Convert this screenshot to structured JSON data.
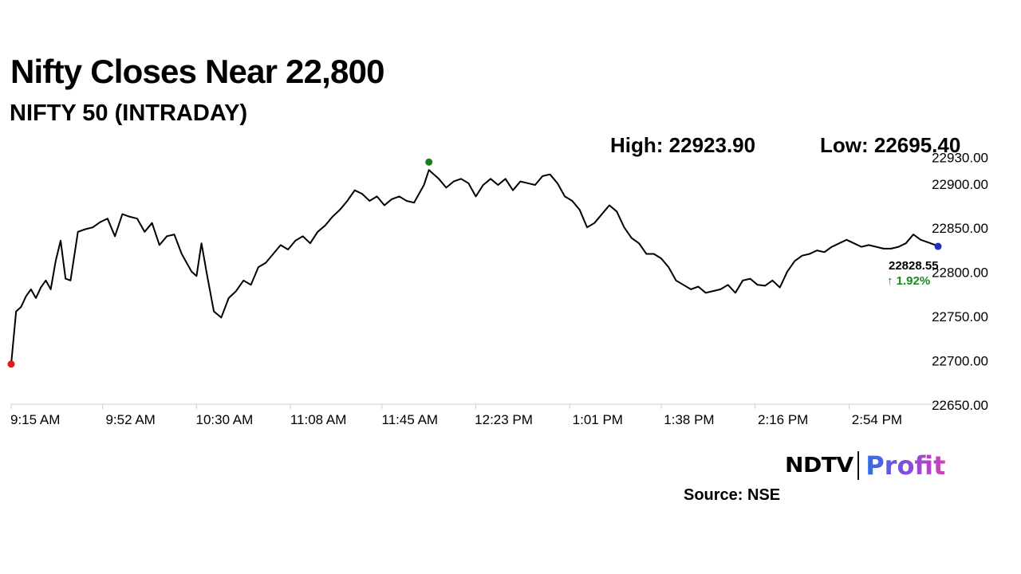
{
  "header": {
    "title": "Nifty Closes Near 22,800",
    "subtitle": "NIFTY 50 (INTRADAY)"
  },
  "stats": {
    "high_text": "High: 22923.90",
    "low_text": "Low: 22695.40"
  },
  "last_price": {
    "value_text": "22828.55",
    "change_text": "↑ 1.92%",
    "change_color": "#1a8a1a"
  },
  "markers": {
    "open_color": "#e01b1b",
    "high_color": "#1a7f1a",
    "last_color": "#1f2fbf"
  },
  "footer": {
    "brand_left": "NDTV",
    "brand_right": "Profit",
    "source": "Source: NSE"
  },
  "chart_data": {
    "type": "line",
    "title": "Nifty Closes Near 22,800",
    "subtitle": "NIFTY 50 (INTRADAY)",
    "x_unit": "time of day",
    "x_tick_labels": [
      "9:15 AM",
      "9:52 AM",
      "10:30 AM",
      "11:08 AM",
      "11:45 AM",
      "12:23 PM",
      "1:01 PM",
      "1:38 PM",
      "2:16 PM",
      "2:54 PM"
    ],
    "x_tick_minutes": [
      555,
      592,
      630,
      668,
      705,
      743,
      781,
      818,
      856,
      894
    ],
    "xlim_minutes": [
      555,
      930
    ],
    "ylim": [
      22650,
      22935
    ],
    "y_ticks": [
      22650,
      22700,
      22750,
      22800,
      22850,
      22900,
      22930
    ],
    "y_tick_labels": [
      "22650.00",
      "22700.00",
      "22750.00",
      "22800.00",
      "22850.00",
      "22900.00",
      "22930.00"
    ],
    "grid": false,
    "line_color": "#000000",
    "series": [
      {
        "x_minutes": [
          555,
          557,
          559,
          561,
          563,
          565,
          567,
          569,
          571,
          573,
          575,
          577,
          579,
          582,
          585,
          588,
          591,
          594,
          597,
          600,
          603,
          606,
          609,
          612,
          615,
          618,
          621,
          624,
          626,
          628,
          630,
          632,
          634,
          637,
          640,
          643,
          646,
          649,
          652,
          655,
          658,
          661,
          664,
          667,
          670,
          673,
          676,
          679,
          682,
          685,
          688,
          691,
          694,
          697,
          700,
          703,
          706,
          709,
          712,
          715,
          718,
          720,
          722,
          724,
          726,
          728,
          731,
          734,
          737,
          740,
          743,
          746,
          749,
          752,
          755,
          758,
          761,
          764,
          767,
          770,
          773,
          776,
          779,
          782,
          785,
          788,
          791,
          794,
          797,
          800,
          803,
          806,
          809,
          812,
          815,
          818,
          821,
          824,
          827,
          830,
          833,
          836,
          839,
          842,
          845,
          848,
          851,
          854,
          857,
          860,
          863,
          866,
          869,
          872,
          875,
          878,
          881,
          884,
          887,
          890,
          893,
          896,
          899,
          902,
          905,
          908,
          911,
          914,
          917,
          920,
          923,
          926,
          929,
          930
        ],
        "values": [
          22695.4,
          22755,
          22760,
          22772,
          22780,
          22770,
          22782,
          22790,
          22780,
          22812,
          22835,
          22792,
          22790,
          22845,
          22848,
          22850,
          22856,
          22860,
          22840,
          22865,
          22862,
          22860,
          22845,
          22855,
          22830,
          22840,
          22842,
          22820,
          22810,
          22800,
          22795,
          22832,
          22800,
          22755,
          22748,
          22770,
          22778,
          22790,
          22785,
          22805,
          22810,
          22820,
          22830,
          22825,
          22835,
          22840,
          22832,
          22845,
          22852,
          22862,
          22870,
          22880,
          22892,
          22888,
          22880,
          22885,
          22875,
          22882,
          22885,
          22880,
          22878,
          22888,
          22898,
          22915,
          22910,
          22905,
          22895,
          22902,
          22905,
          22900,
          22885,
          22898,
          22905,
          22898,
          22905,
          22892,
          22902,
          22900,
          22898,
          22908,
          22910,
          22900,
          22885,
          22880,
          22870,
          22850,
          22855,
          22865,
          22875,
          22868,
          22850,
          22838,
          22832,
          22820,
          22820,
          22815,
          22805,
          22790,
          22785,
          22780,
          22783,
          22776,
          22778,
          22780,
          22785,
          22776,
          22790,
          22792,
          22785,
          22784,
          22790,
          22782,
          22800,
          22812,
          22818,
          22820,
          22824,
          22822,
          22828,
          22832,
          22836,
          22832,
          22828,
          22830,
          22828,
          22826,
          22826,
          22828,
          22832,
          22842,
          22836,
          22833,
          22830,
          22828.55
        ]
      }
    ],
    "open": 22695.4,
    "high": 22923.9,
    "low": 22695.4,
    "last": 22828.55,
    "change_pct": 1.92
  }
}
